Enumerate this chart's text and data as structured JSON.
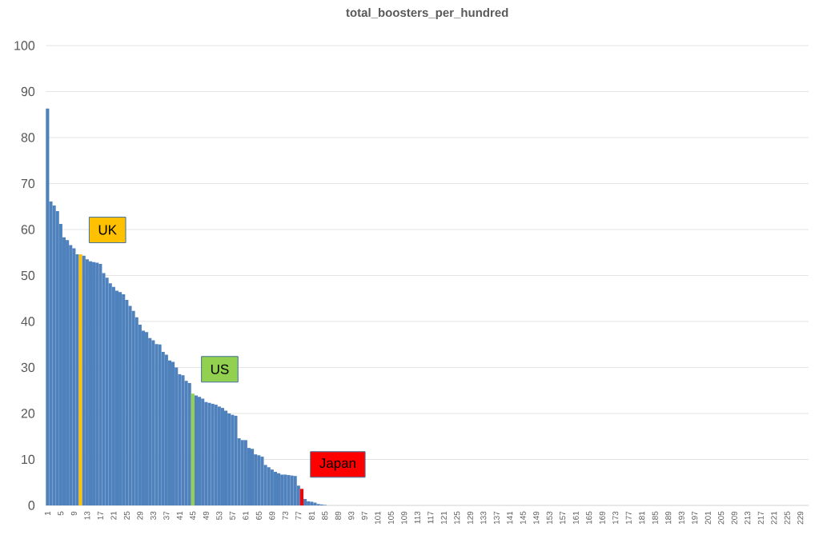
{
  "chart_data": {
    "type": "bar",
    "title": "total_boosters_per_hundred",
    "categories": [
      "1",
      null,
      null,
      null,
      "5",
      null,
      null,
      null,
      "9",
      null,
      null,
      null,
      "13",
      null,
      null,
      null,
      "17",
      null,
      null,
      null,
      "21",
      null,
      null,
      null,
      "25",
      null,
      null,
      null,
      "29",
      null,
      null,
      null,
      "33",
      null,
      null,
      null,
      "37",
      null,
      null,
      null,
      "41",
      null,
      null,
      null,
      "45",
      null,
      null,
      null,
      "49",
      null,
      null,
      null,
      "53",
      null,
      null,
      null,
      "57",
      null,
      null,
      null,
      "61",
      null,
      null,
      null,
      "65",
      null,
      null,
      null,
      "69",
      null,
      null,
      null,
      "73",
      null,
      null,
      null,
      "77",
      null,
      null,
      null,
      "81",
      null,
      null,
      null,
      "85",
      null,
      null,
      null,
      "89",
      null,
      null,
      null,
      "93",
      null,
      null,
      null,
      "97",
      null,
      null,
      null,
      "101",
      null,
      null,
      null,
      "105",
      null,
      null,
      null,
      "109",
      null,
      null,
      null,
      "113",
      null,
      null,
      null,
      "117",
      null,
      null,
      null,
      "121",
      null,
      null,
      null,
      "125",
      null,
      null,
      null,
      "129",
      null,
      null,
      null,
      "133",
      null,
      null,
      null,
      "137",
      null,
      null,
      null,
      "141",
      null,
      null,
      null,
      "145",
      null,
      null,
      null,
      "149",
      null,
      null,
      null,
      "153",
      null,
      null,
      null,
      "157",
      null,
      null,
      null,
      "161",
      null,
      null,
      null,
      "165",
      null,
      null,
      null,
      "169",
      null,
      null,
      null,
      "173",
      null,
      null,
      null,
      "177",
      null,
      null,
      null,
      "181",
      null,
      null,
      null,
      "185",
      null,
      null,
      null,
      "189",
      null,
      null,
      null,
      "193",
      null,
      null,
      null,
      "197",
      null,
      null,
      null,
      "201",
      null,
      null,
      null,
      "205",
      null,
      null,
      null,
      "209",
      null,
      null,
      null,
      "213",
      null,
      null,
      null,
      "217",
      null,
      null,
      null,
      "221",
      null,
      null,
      null,
      "225",
      null,
      null,
      null,
      "229",
      null,
      null
    ],
    "values": [
      86.3,
      66.1,
      65.2,
      64.0,
      61.2,
      58.3,
      57.7,
      56.6,
      55.9,
      54.6,
      54.6,
      54.3,
      53.5,
      53.1,
      52.9,
      52.8,
      52.5,
      50.5,
      49.5,
      48.3,
      47.5,
      46.7,
      46.4,
      45.9,
      44.7,
      43.4,
      42.3,
      40.9,
      39.3,
      38.0,
      37.7,
      36.4,
      35.9,
      35.1,
      35.0,
      33.4,
      32.8,
      31.5,
      31.2,
      30.0,
      28.5,
      28.3,
      27.1,
      26.6,
      24.3,
      23.9,
      23.6,
      23.2,
      22.5,
      22.3,
      22.1,
      21.9,
      21.5,
      21.2,
      20.6,
      20.0,
      19.7,
      19.5,
      14.6,
      14.2,
      14.2,
      12.5,
      12.3,
      11.1,
      10.9,
      10.6,
      8.8,
      8.3,
      7.8,
      7.3,
      7.0,
      6.7,
      6.7,
      6.6,
      6.5,
      6.4,
      4.3,
      3.6,
      1.4,
      0.9,
      0.8,
      0.6,
      0.3,
      0.2,
      0.1,
      null,
      null,
      null,
      null,
      null,
      null,
      null,
      null,
      null,
      null,
      null,
      null,
      null,
      null,
      null,
      null,
      null,
      null,
      null,
      null,
      null,
      null,
      null,
      null,
      null,
      null,
      null,
      null,
      null,
      null,
      null,
      null,
      null,
      null,
      null,
      null,
      null,
      null,
      null,
      null,
      null,
      null,
      null,
      null,
      null,
      null,
      null,
      null,
      null,
      null,
      null,
      null,
      null,
      null,
      null,
      null,
      null,
      null,
      null,
      null,
      null,
      null,
      null,
      null,
      null,
      null,
      null,
      null,
      null,
      null,
      null,
      null,
      null,
      null,
      null,
      null,
      null,
      null,
      null,
      null,
      null,
      null,
      null,
      null,
      null,
      null,
      null,
      null,
      null,
      null,
      null,
      null,
      null,
      null,
      null,
      null,
      null,
      null,
      null,
      null,
      null,
      null,
      null,
      null,
      null,
      null,
      null,
      null,
      null,
      null,
      null,
      null,
      null,
      null,
      null,
      null,
      null,
      null,
      null,
      null,
      null,
      null,
      null,
      null,
      null,
      null,
      null,
      null,
      null,
      null,
      null,
      null,
      null,
      null,
      null,
      null,
      null,
      null,
      null,
      null,
      null,
      null,
      null,
      null,
      null,
      null
    ],
    "colors": [
      "#4f81bd",
      "#4f81bd",
      "#4f81bd",
      "#4f81bd",
      "#4f81bd",
      "#4f81bd",
      "#4f81bd",
      "#4f81bd",
      "#4f81bd",
      "#4f81bd",
      "#ffc000",
      "#4f81bd",
      "#4f81bd",
      "#4f81bd",
      "#4f81bd",
      "#4f81bd",
      "#4f81bd",
      "#4f81bd",
      "#4f81bd",
      "#4f81bd",
      "#4f81bd",
      "#4f81bd",
      "#4f81bd",
      "#4f81bd",
      "#4f81bd",
      "#4f81bd",
      "#4f81bd",
      "#4f81bd",
      "#4f81bd",
      "#4f81bd",
      "#4f81bd",
      "#4f81bd",
      "#4f81bd",
      "#4f81bd",
      "#4f81bd",
      "#4f81bd",
      "#4f81bd",
      "#4f81bd",
      "#4f81bd",
      "#4f81bd",
      "#4f81bd",
      "#4f81bd",
      "#4f81bd",
      "#4f81bd",
      "#92d050",
      "#4f81bd",
      "#4f81bd",
      "#4f81bd",
      "#4f81bd",
      "#4f81bd",
      "#4f81bd",
      "#4f81bd",
      "#4f81bd",
      "#4f81bd",
      "#4f81bd",
      "#4f81bd",
      "#4f81bd",
      "#4f81bd",
      "#4f81bd",
      "#4f81bd",
      "#4f81bd",
      "#4f81bd",
      "#4f81bd",
      "#4f81bd",
      "#4f81bd",
      "#4f81bd",
      "#4f81bd",
      "#4f81bd",
      "#4f81bd",
      "#4f81bd",
      "#4f81bd",
      "#4f81bd",
      "#4f81bd",
      "#4f81bd",
      "#4f81bd",
      "#4f81bd",
      "#4f81bd",
      "#ff0000",
      "#4f81bd",
      "#4f81bd",
      "#4f81bd",
      "#4f81bd",
      "#4f81bd",
      "#4f81bd",
      "#4f81bd",
      "#4f81bd",
      "#4f81bd",
      "#4f81bd",
      "#4f81bd",
      "#4f81bd",
      "#4f81bd",
      "#4f81bd",
      "#4f81bd",
      "#4f81bd",
      "#4f81bd",
      "#4f81bd",
      "#4f81bd",
      "#4f81bd",
      "#4f81bd",
      "#4f81bd",
      "#4f81bd",
      "#4f81bd",
      "#4f81bd",
      "#4f81bd",
      "#4f81bd",
      "#4f81bd",
      "#4f81bd",
      "#4f81bd",
      "#4f81bd",
      "#4f81bd",
      "#4f81bd",
      "#4f81bd",
      "#4f81bd",
      "#4f81bd",
      "#4f81bd",
      "#4f81bd",
      "#4f81bd",
      "#4f81bd",
      "#4f81bd",
      "#4f81bd",
      "#4f81bd",
      "#4f81bd",
      "#4f81bd",
      "#4f81bd",
      "#4f81bd",
      "#4f81bd",
      "#4f81bd",
      "#4f81bd",
      "#4f81bd",
      "#4f81bd",
      "#4f81bd",
      "#4f81bd",
      "#4f81bd",
      "#4f81bd",
      "#4f81bd",
      "#4f81bd",
      "#4f81bd",
      "#4f81bd",
      "#4f81bd",
      "#4f81bd",
      "#4f81bd",
      "#4f81bd",
      "#4f81bd",
      "#4f81bd",
      "#4f81bd",
      "#4f81bd",
      "#4f81bd",
      "#4f81bd",
      "#4f81bd",
      "#4f81bd",
      "#4f81bd",
      "#4f81bd",
      "#4f81bd",
      "#4f81bd",
      "#4f81bd",
      "#4f81bd",
      "#4f81bd",
      "#4f81bd",
      "#4f81bd",
      "#4f81bd",
      "#4f81bd",
      "#4f81bd",
      "#4f81bd",
      "#4f81bd",
      "#4f81bd",
      "#4f81bd",
      "#4f81bd",
      "#4f81bd",
      "#4f81bd",
      "#4f81bd",
      "#4f81bd",
      "#4f81bd",
      "#4f81bd",
      "#4f81bd",
      "#4f81bd",
      "#4f81bd",
      "#4f81bd",
      "#4f81bd",
      "#4f81bd",
      "#4f81bd",
      "#4f81bd",
      "#4f81bd",
      "#4f81bd",
      "#4f81bd",
      "#4f81bd",
      "#4f81bd",
      "#4f81bd",
      "#4f81bd",
      "#4f81bd",
      "#4f81bd",
      "#4f81bd",
      "#4f81bd",
      "#4f81bd",
      "#4f81bd",
      "#4f81bd",
      "#4f81bd",
      "#4f81bd",
      "#4f81bd",
      "#4f81bd",
      "#4f81bd",
      "#4f81bd",
      "#4f81bd",
      "#4f81bd",
      "#4f81bd",
      "#4f81bd",
      "#4f81bd",
      "#4f81bd",
      "#4f81bd",
      "#4f81bd",
      "#4f81bd",
      "#4f81bd",
      "#4f81bd",
      "#4f81bd",
      "#4f81bd",
      "#4f81bd",
      "#4f81bd",
      "#4f81bd",
      "#4f81bd",
      "#4f81bd",
      "#4f81bd",
      "#4f81bd",
      "#4f81bd",
      "#4f81bd",
      "#4f81bd",
      "#4f81bd",
      "#4f81bd",
      "#4f81bd",
      "#4f81bd",
      "#4f81bd",
      "#4f81bd",
      "#4f81bd"
    ],
    "ylim": [
      0,
      100
    ],
    "yticks": [
      0,
      10,
      20,
      30,
      40,
      50,
      60,
      70,
      80,
      90,
      100
    ],
    "grid": "y",
    "annotations": [
      "UK",
      "US",
      "Japan"
    ]
  }
}
